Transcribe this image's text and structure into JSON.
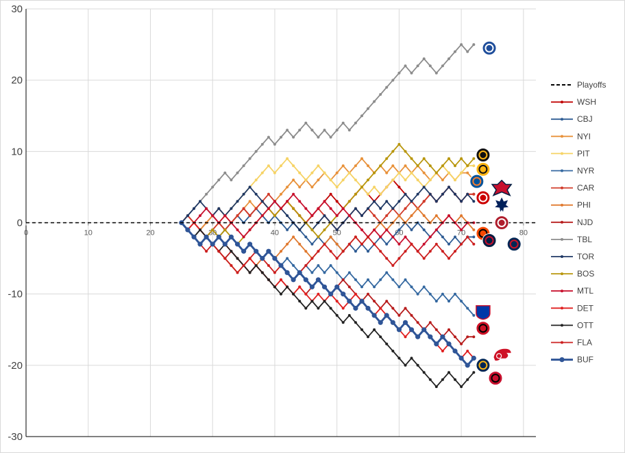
{
  "chart_data": {
    "type": "line",
    "xlim": [
      0,
      82
    ],
    "ylim": [
      -30,
      30
    ],
    "x_ticks": [
      "0",
      "10",
      "20",
      "30",
      "40",
      "50",
      "60",
      "70",
      "80"
    ],
    "y_ticks": [
      "30",
      "20",
      "10",
      "0",
      "-10",
      "-20",
      "-30"
    ],
    "grid": true,
    "legend_position": "right",
    "reference_line": {
      "name": "Playoffs",
      "y": 0,
      "style": "dashed",
      "color": "#000000"
    },
    "series": [
      {
        "name": "WSH",
        "color": "#c00000",
        "start": 25,
        "marker": "dot",
        "values": [
          0,
          1,
          0,
          -1,
          0,
          1,
          0,
          -1,
          0,
          1,
          2,
          1,
          2,
          3,
          2,
          1,
          2,
          3,
          2,
          1,
          0,
          1,
          2,
          3,
          4,
          3,
          2,
          3,
          4,
          5,
          4,
          3,
          4,
          5,
          6,
          5,
          4,
          3,
          2,
          3,
          4,
          3,
          4,
          5,
          4,
          3,
          4,
          4
        ]
      },
      {
        "name": "CBJ",
        "color": "#2e5c94",
        "start": 25,
        "marker": "dot",
        "values": [
          0,
          -1,
          -2,
          -3,
          -2,
          -1,
          -2,
          -1,
          0,
          1,
          0,
          1,
          2,
          1,
          0,
          1,
          0,
          -1,
          0,
          -1,
          -2,
          -3,
          -2,
          -3,
          -2,
          -3,
          -4,
          -3,
          -4,
          -3,
          -4,
          -3,
          -2,
          -3,
          -2,
          -1,
          0,
          -1,
          0,
          -1,
          -2,
          -1,
          -2,
          -3,
          -2,
          -3,
          -2,
          -2
        ]
      },
      {
        "name": "NYI",
        "color": "#e8913a",
        "start": 25,
        "marker": "dot",
        "values": [
          0,
          -1,
          -2,
          -1,
          0,
          1,
          2,
          1,
          0,
          1,
          2,
          3,
          2,
          3,
          2,
          3,
          4,
          5,
          6,
          5,
          6,
          5,
          6,
          7,
          6,
          7,
          8,
          7,
          8,
          9,
          8,
          7,
          8,
          7,
          8,
          7,
          8,
          7,
          8,
          7,
          6,
          7,
          6,
          7,
          6,
          7,
          7,
          6
        ]
      },
      {
        "name": "PIT",
        "color": "#f6d365",
        "start": 25,
        "marker": "dot",
        "values": [
          0,
          -1,
          -2,
          -3,
          -2,
          -1,
          0,
          1,
          2,
          3,
          4,
          5,
          6,
          7,
          8,
          7,
          8,
          9,
          8,
          7,
          6,
          7,
          8,
          7,
          6,
          5,
          6,
          7,
          6,
          5,
          4,
          5,
          4,
          5,
          6,
          7,
          6,
          7,
          6,
          5,
          6,
          7,
          8,
          7,
          6,
          7,
          8,
          8
        ]
      },
      {
        "name": "NYR",
        "color": "#3468a0",
        "start": 25,
        "marker": "dot",
        "values": [
          0,
          -1,
          -2,
          -1,
          -2,
          -3,
          -2,
          -3,
          -2,
          -3,
          -4,
          -3,
          -4,
          -5,
          -4,
          -5,
          -6,
          -5,
          -6,
          -7,
          -6,
          -7,
          -6,
          -7,
          -6,
          -7,
          -8,
          -7,
          -8,
          -9,
          -8,
          -9,
          -8,
          -7,
          -8,
          -9,
          -8,
          -9,
          -10,
          -9,
          -10,
          -11,
          -10,
          -11,
          -10,
          -11,
          -12,
          -13
        ]
      },
      {
        "name": "CAR",
        "color": "#d13b2a",
        "start": 25,
        "marker": "dot",
        "values": [
          0,
          1,
          0,
          -1,
          -2,
          -1,
          0,
          -1,
          0,
          1,
          2,
          1,
          2,
          3,
          4,
          3,
          2,
          3,
          2,
          1,
          0,
          1,
          2,
          1,
          0,
          -1,
          0,
          1,
          2,
          1,
          2,
          1,
          0,
          1,
          2,
          1,
          2,
          3,
          2,
          3,
          4,
          3,
          4,
          5,
          4,
          3,
          4,
          4
        ]
      },
      {
        "name": "PHI",
        "color": "#e0792e",
        "start": 25,
        "marker": "dot",
        "values": [
          0,
          -1,
          -2,
          -3,
          -2,
          -3,
          -4,
          -5,
          -6,
          -7,
          -6,
          -5,
          -6,
          -5,
          -4,
          -5,
          -4,
          -3,
          -2,
          -3,
          -4,
          -5,
          -4,
          -3,
          -2,
          -3,
          -4,
          -3,
          -2,
          -3,
          -2,
          -1,
          0,
          -1,
          0,
          1,
          0,
          1,
          2,
          1,
          0,
          1,
          0,
          1,
          0,
          1,
          0,
          -1
        ]
      },
      {
        "name": "NJD",
        "color": "#b71c1c",
        "start": 25,
        "marker": "dot",
        "values": [
          0,
          -1,
          -2,
          -3,
          -2,
          -3,
          -4,
          -5,
          -4,
          -5,
          -6,
          -7,
          -6,
          -7,
          -8,
          -9,
          -8,
          -9,
          -10,
          -9,
          -10,
          -9,
          -8,
          -9,
          -10,
          -9,
          -8,
          -9,
          -10,
          -11,
          -10,
          -11,
          -12,
          -11,
          -12,
          -13,
          -12,
          -13,
          -14,
          -15,
          -14,
          -15,
          -16,
          -15,
          -16,
          -17,
          -16,
          -16
        ]
      },
      {
        "name": "TBL",
        "color": "#8c8c8c",
        "start": 25,
        "marker": "dot",
        "values": [
          0,
          1,
          2,
          3,
          4,
          5,
          6,
          7,
          6,
          7,
          8,
          9,
          10,
          11,
          12,
          11,
          12,
          13,
          12,
          13,
          14,
          13,
          12,
          13,
          12,
          13,
          14,
          13,
          14,
          15,
          16,
          17,
          18,
          19,
          20,
          21,
          22,
          21,
          22,
          23,
          22,
          21,
          22,
          23,
          24,
          25,
          24,
          25
        ]
      },
      {
        "name": "TOR",
        "color": "#1f3864",
        "start": 25,
        "marker": "dot",
        "values": [
          0,
          1,
          2,
          3,
          2,
          1,
          2,
          1,
          2,
          3,
          4,
          5,
          4,
          3,
          2,
          3,
          2,
          1,
          0,
          -1,
          0,
          -1,
          0,
          1,
          0,
          -1,
          0,
          1,
          2,
          1,
          2,
          3,
          2,
          3,
          2,
          3,
          4,
          3,
          4,
          5,
          4,
          3,
          4,
          5,
          4,
          3,
          4,
          3
        ]
      },
      {
        "name": "BOS",
        "color": "#b8960c",
        "start": 25,
        "marker": "dot",
        "values": [
          0,
          -1,
          -2,
          -3,
          -2,
          -1,
          -2,
          -1,
          -2,
          -3,
          -2,
          -1,
          0,
          1,
          2,
          1,
          2,
          3,
          2,
          1,
          0,
          -1,
          -2,
          -1,
          0,
          1,
          2,
          3,
          4,
          5,
          6,
          7,
          8,
          9,
          10,
          11,
          10,
          9,
          8,
          9,
          8,
          7,
          8,
          9,
          8,
          9,
          8,
          9
        ]
      },
      {
        "name": "MTL",
        "color": "#c8102e",
        "start": 25,
        "marker": "dot",
        "values": [
          0,
          -1,
          0,
          1,
          2,
          1,
          0,
          1,
          0,
          -1,
          -2,
          -1,
          0,
          1,
          2,
          3,
          2,
          3,
          4,
          3,
          2,
          1,
          2,
          3,
          2,
          1,
          2,
          1,
          0,
          -1,
          -2,
          -1,
          -2,
          -1,
          -2,
          -3,
          -2,
          -3,
          -4,
          -3,
          -2,
          -1,
          0,
          1,
          0,
          -1,
          0,
          0
        ]
      },
      {
        "name": "DET",
        "color": "#e02020",
        "start": 25,
        "marker": "dot",
        "values": [
          0,
          -1,
          0,
          -1,
          -2,
          -3,
          -2,
          -3,
          -4,
          -5,
          -6,
          -5,
          -6,
          -7,
          -8,
          -9,
          -8,
          -9,
          -10,
          -9,
          -10,
          -11,
          -10,
          -11,
          -10,
          -11,
          -12,
          -11,
          -10,
          -11,
          -12,
          -13,
          -12,
          -13,
          -14,
          -15,
          -16,
          -15,
          -16,
          -15,
          -16,
          -17,
          -18,
          -17,
          -18,
          -19,
          -18,
          -19
        ]
      },
      {
        "name": "OTT",
        "color": "#222222",
        "start": 25,
        "marker": "dot",
        "values": [
          0,
          -1,
          -2,
          -1,
          -2,
          -3,
          -4,
          -3,
          -4,
          -5,
          -6,
          -7,
          -6,
          -7,
          -8,
          -9,
          -10,
          -9,
          -10,
          -11,
          -12,
          -11,
          -12,
          -11,
          -12,
          -13,
          -14,
          -13,
          -14,
          -15,
          -16,
          -15,
          -16,
          -17,
          -18,
          -19,
          -20,
          -19,
          -20,
          -21,
          -22,
          -23,
          -22,
          -21,
          -22,
          -23,
          -22,
          -21
        ]
      },
      {
        "name": "FLA",
        "color": "#cc1f1f",
        "start": 25,
        "marker": "dot",
        "values": [
          0,
          -1,
          -2,
          -3,
          -4,
          -3,
          -4,
          -5,
          -6,
          -7,
          -6,
          -5,
          -4,
          -5,
          -6,
          -7,
          -6,
          -7,
          -8,
          -7,
          -6,
          -5,
          -4,
          -3,
          -4,
          -5,
          -4,
          -3,
          -2,
          -3,
          -2,
          -3,
          -4,
          -5,
          -6,
          -5,
          -4,
          -3,
          -4,
          -5,
          -4,
          -3,
          -4,
          -5,
          -4,
          -3,
          -2,
          -3
        ]
      },
      {
        "name": "BUF",
        "color": "#2f5597",
        "start": 25,
        "marker": "big",
        "values": [
          0,
          -1,
          -2,
          -3,
          -2,
          -3,
          -2,
          -3,
          -2,
          -3,
          -4,
          -3,
          -4,
          -5,
          -4,
          -5,
          -6,
          -7,
          -8,
          -7,
          -8,
          -9,
          -8,
          -9,
          -10,
          -9,
          -10,
          -11,
          -12,
          -11,
          -12,
          -13,
          -14,
          -13,
          -14,
          -15,
          -14,
          -15,
          -16,
          -15,
          -16,
          -17,
          -16,
          -17,
          -18,
          -19,
          -20,
          -19
        ]
      }
    ],
    "team_logos": [
      {
        "team": "TBL",
        "x": 74.5,
        "y": 24.5,
        "bg": "#1f4e9b",
        "fg": "#ffffff",
        "shape": "circle"
      },
      {
        "team": "BOS",
        "x": 73.5,
        "y": 9.5,
        "bg": "#111111",
        "fg": "#fcb514",
        "shape": "circle"
      },
      {
        "team": "PIT",
        "x": 73.5,
        "y": 7.5,
        "bg": "#fcb514",
        "fg": "#111111",
        "shape": "circle"
      },
      {
        "team": "NYI",
        "x": 72.5,
        "y": 5.8,
        "bg": "#00539b",
        "fg": "#f47d30",
        "shape": "circle"
      },
      {
        "team": "WSH",
        "x": 76.5,
        "y": 4.8,
        "bg": "#041e42",
        "fg": "#c8102e",
        "shape": "star"
      },
      {
        "team": "CAR",
        "x": 73.5,
        "y": 3.5,
        "bg": "#cc0000",
        "fg": "#ffffff",
        "shape": "circle"
      },
      {
        "team": "TOR",
        "x": 76.5,
        "y": 2.5,
        "bg": "#00205b",
        "fg": "#ffffff",
        "shape": "leaf"
      },
      {
        "team": "MTL",
        "x": 76.5,
        "y": 0.0,
        "bg": "#af1e2d",
        "fg": "#ffffff",
        "shape": "circle"
      },
      {
        "team": "PHI",
        "x": 73.5,
        "y": -1.5,
        "bg": "#f74902",
        "fg": "#000000",
        "shape": "circle"
      },
      {
        "team": "FLA",
        "x": 74.5,
        "y": -2.5,
        "bg": "#041e42",
        "fg": "#c8102e",
        "shape": "circle"
      },
      {
        "team": "CBJ",
        "x": 78.5,
        "y": -3.0,
        "bg": "#002654",
        "fg": "#ce1126",
        "shape": "circle"
      },
      {
        "team": "NYR",
        "x": 73.5,
        "y": -12.5,
        "bg": "#0038a8",
        "fg": "#ffffff",
        "shape": "shield"
      },
      {
        "team": "NJD",
        "x": 73.5,
        "y": -14.8,
        "bg": "#ce1126",
        "fg": "#000000",
        "shape": "circle"
      },
      {
        "team": "DET",
        "x": 76.5,
        "y": -18.5,
        "bg": "#ce1126",
        "fg": "#ffffff",
        "shape": "wing"
      },
      {
        "team": "BUF",
        "x": 73.5,
        "y": -20.0,
        "bg": "#002654",
        "fg": "#fcb514",
        "shape": "circle"
      },
      {
        "team": "OTT",
        "x": 75.5,
        "y": -21.8,
        "bg": "#c8102e",
        "fg": "#000000",
        "shape": "circle"
      }
    ]
  }
}
